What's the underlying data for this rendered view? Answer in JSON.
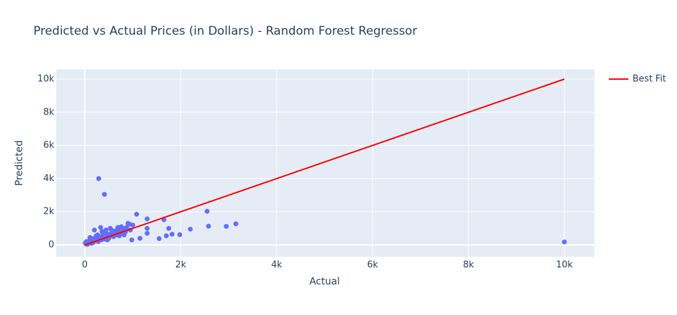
{
  "chart_data": {
    "type": "scatter",
    "title": "Predicted vs Actual Prices (in Dollars) - Random Forest Regressor",
    "x_label": "Actual",
    "y_label": "Predicted",
    "xlim": [
      -594,
      10623
    ],
    "ylim": [
      -711,
      10586
    ],
    "xticks": [
      0,
      {
        "value": 2000,
        "label": "2k"
      },
      {
        "value": 4000,
        "label": "4k"
      },
      {
        "value": 6000,
        "label": "6k"
      },
      {
        "value": 8000,
        "label": "8k"
      },
      {
        "value": 10000,
        "label": "10k"
      }
    ],
    "yticks": [
      0,
      {
        "value": 2000,
        "label": "2k"
      },
      {
        "value": 4000,
        "label": "4k"
      },
      {
        "value": 6000,
        "label": "6k"
      },
      {
        "value": 8000,
        "label": "8k"
      },
      {
        "value": 10000,
        "label": "10k"
      }
    ],
    "grid": true,
    "legend": "right",
    "series": [
      {
        "color": "#636efa",
        "mode": "markers",
        "x": [
          20,
          50,
          80,
          100,
          120,
          150,
          180,
          200,
          220,
          250,
          280,
          300,
          320,
          350,
          380,
          400,
          420,
          450,
          480,
          500,
          520,
          550,
          580,
          600,
          620,
          650,
          680,
          700,
          720,
          750,
          780,
          800,
          850,
          900,
          950,
          1000,
          60,
          110,
          160,
          240,
          330,
          440,
          530,
          640,
          760,
          870,
          980,
          30,
          90,
          140,
          200,
          270,
          360,
          470,
          560,
          690,
          820,
          930,
          10,
          40,
          290,
          410,
          10000,
          2550,
          3150,
          2950,
          2580,
          2200,
          1980,
          1700,
          1650,
          1300,
          1080,
          1750,
          1300,
          1300,
          1150,
          1550,
          1820
        ],
        "values": [
          80,
          150,
          100,
          300,
          200,
          250,
          150,
          400,
          300,
          350,
          200,
          500,
          400,
          300,
          600,
          450,
          350,
          700,
          500,
          400,
          650,
          550,
          800,
          500,
          700,
          600,
          900,
          750,
          550,
          850,
          700,
          1000,
          800,
          1300,
          900,
          1200,
          50,
          450,
          350,
          550,
          1050,
          900,
          1000,
          850,
          1100,
          1050,
          300,
          200,
          250,
          100,
          900,
          600,
          800,
          300,
          900,
          1050,
          600,
          1250,
          120,
          30,
          4000,
          3050,
          180,
          2030,
          1270,
          1120,
          1130,
          950,
          620,
          550,
          1520,
          1570,
          1850,
          1000,
          1000,
          700,
          400,
          380,
          650
        ]
      },
      {
        "name": "Best Fit",
        "color": "#ff0000",
        "mode": "lines",
        "x": [
          0,
          10000
        ],
        "values": [
          0,
          10000
        ]
      }
    ]
  }
}
